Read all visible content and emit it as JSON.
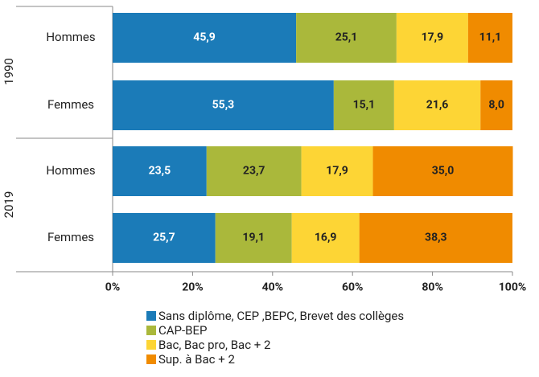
{
  "chart_data": {
    "type": "stacked_bar_horizontal",
    "groups": [
      "1990",
      "2019"
    ],
    "categories": [
      "Hommes",
      "Femmes",
      "Hommes",
      "Femmes"
    ],
    "series": [
      {
        "name": "Sans diplôme, CEP ,BEPC, Brevet des collèges",
        "color": "#1b7bb8",
        "label_color": "#ffffff",
        "values": [
          45.9,
          55.3,
          23.5,
          25.7
        ],
        "value_labels": [
          "45,9",
          "55,3",
          "23,5",
          "25,7"
        ]
      },
      {
        "name": "CAP-BEP",
        "color": "#aab83b",
        "label_color": "#222222",
        "values": [
          25.1,
          15.1,
          23.7,
          19.1
        ],
        "value_labels": [
          "25,1",
          "15,1",
          "23,7",
          "19,1"
        ]
      },
      {
        "name": "Bac, Bac pro, Bac + 2",
        "color": "#fdd535",
        "label_color": "#222222",
        "values": [
          17.9,
          21.6,
          17.9,
          16.9
        ],
        "value_labels": [
          "17,9",
          "21,6",
          "17,9",
          "16,9"
        ]
      },
      {
        "name": "Sup. à Bac + 2",
        "color": "#f08b00",
        "label_color": "#222222",
        "values": [
          11.1,
          8.0,
          35.0,
          38.3
        ],
        "value_labels": [
          "11,1",
          "8,0",
          "35,0",
          "38,3"
        ]
      }
    ],
    "xlim": [
      0,
      100
    ],
    "xticks": [
      {
        "value": 0,
        "label": "0%"
      },
      {
        "value": 20,
        "label": "20%"
      },
      {
        "value": 40,
        "label": "40%"
      },
      {
        "value": 60,
        "label": "60%"
      },
      {
        "value": 80,
        "label": "80%"
      },
      {
        "value": 100,
        "label": "100%"
      }
    ]
  }
}
